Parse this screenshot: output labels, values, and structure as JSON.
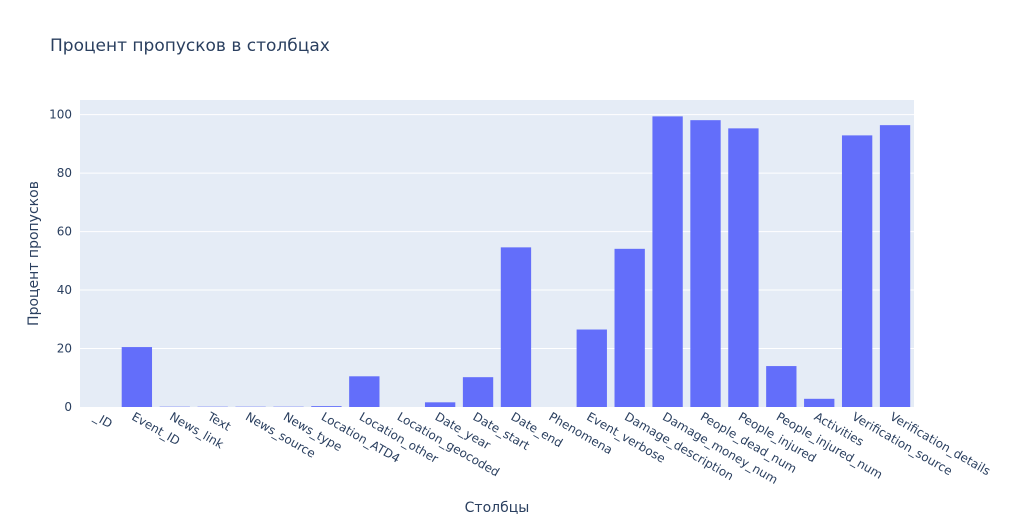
{
  "chart_data": {
    "type": "bar",
    "title": "Процент пропусков в столбцах",
    "xlabel": "Столбцы",
    "ylabel": "Процент пропусков",
    "ylim": [
      0,
      105
    ],
    "yticks": [
      0,
      20,
      40,
      60,
      80,
      100
    ],
    "grid": true,
    "colors": {
      "bar": "#636efa",
      "plot_bg": "#e5ecf6",
      "grid": "#ffffff",
      "text": "#2a3f5f"
    },
    "categories": [
      "_ID",
      "Event_ID",
      "News_link",
      "Text",
      "News_source",
      "News_type",
      "Location_ATD4",
      "Location_other",
      "Location_geocoded",
      "Date_year",
      "Date_start",
      "Date_end",
      "Phenomena",
      "Event_verbose",
      "Damage_description",
      "Damage_money_num",
      "People_dead_num",
      "People_injured",
      "People_injured_num",
      "Activities",
      "Verification_source",
      "Verification_details"
    ],
    "values": [
      0,
      20.5,
      0.1,
      0.1,
      0.1,
      0.1,
      0.3,
      10.5,
      0,
      1.6,
      10.2,
      54.6,
      0,
      26.5,
      54.1,
      99.4,
      98.1,
      95.3,
      14.0,
      2.8,
      92.9,
      96.4
    ]
  }
}
